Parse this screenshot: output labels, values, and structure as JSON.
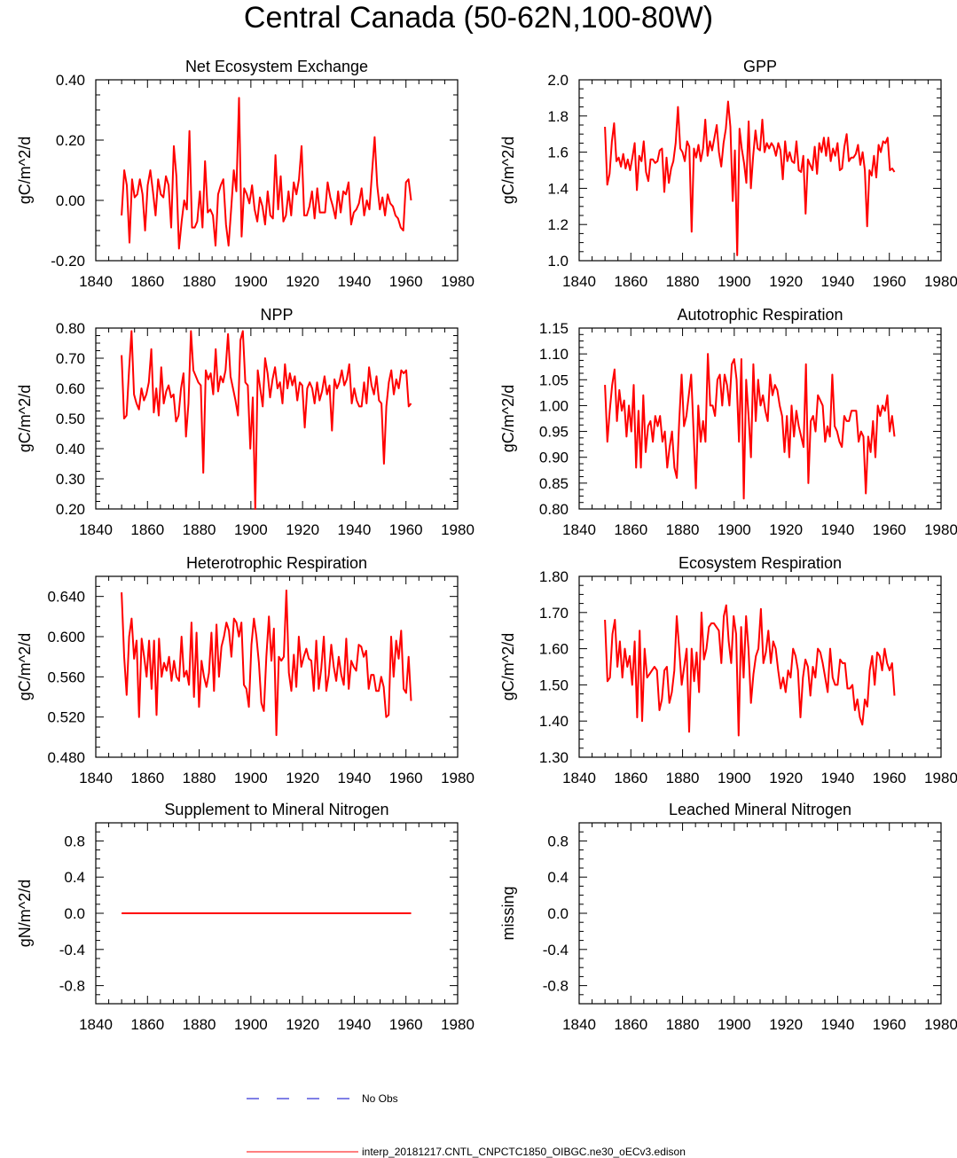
{
  "title": "Central Canada (50-62N,100-80W)",
  "colors": {
    "model": "#ff0000",
    "obs": "#0000cc",
    "axis": "#000000"
  },
  "legend": {
    "obs_label": "No Obs",
    "model_label": "interp_20181217.CNTL_CNPCTC1850_OIBGC.ne30_oECv3.edison"
  },
  "chart_data": [
    {
      "type": "line",
      "title": "Net Ecosystem Exchange",
      "ylabel": "gC/m^2/d",
      "xlim": [
        1840,
        1980
      ],
      "xticks": [
        1840,
        1860,
        1880,
        1900,
        1920,
        1940,
        1960,
        1980
      ],
      "xticklabels": [
        "1840",
        "1860",
        "1880",
        "1900",
        "1920",
        "1940",
        "1960",
        "1980"
      ],
      "ylim": [
        -0.2,
        0.4
      ],
      "yticks": [
        -0.2,
        0.0,
        0.2,
        0.4
      ],
      "yticklabels": [
        "-0.20",
        "0.00",
        "0.20",
        "0.40"
      ],
      "x_start": 1850,
      "values": [
        -0.05,
        0.1,
        0.05,
        -0.14,
        0.07,
        0.01,
        0.02,
        0.07,
        0.02,
        -0.1,
        0.05,
        0.1,
        0.03,
        -0.05,
        0.07,
        0.02,
        0.01,
        0.08,
        0.05,
        -0.09,
        0.18,
        0.08,
        -0.16,
        -0.07,
        0.0,
        -0.03,
        0.23,
        -0.09,
        -0.09,
        -0.07,
        0.03,
        -0.09,
        0.13,
        -0.04,
        -0.03,
        -0.05,
        -0.15,
        0.02,
        0.05,
        0.07,
        -0.08,
        -0.15,
        -0.03,
        0.1,
        0.03,
        0.34,
        -0.12,
        0.04,
        0.02,
        -0.01,
        0.05,
        -0.03,
        -0.07,
        0.01,
        -0.02,
        -0.08,
        0.03,
        -0.05,
        -0.06,
        0.15,
        -0.03,
        0.08,
        -0.07,
        -0.05,
        0.03,
        -0.05,
        0.06,
        0.02,
        0.07,
        0.18,
        -0.05,
        -0.05,
        -0.02,
        0.03,
        -0.06,
        0.04,
        -0.04,
        -0.04,
        -0.04,
        0.06,
        0.01,
        -0.02,
        -0.06,
        0.03,
        -0.04,
        0.03,
        0.02,
        0.06,
        -0.08,
        -0.04,
        -0.03,
        -0.01,
        0.04,
        -0.05,
        0.0,
        -0.03,
        0.09,
        0.21,
        0.05,
        -0.03,
        0.01,
        -0.05,
        0.02,
        -0.01,
        -0.02,
        -0.05,
        -0.06,
        -0.09,
        -0.1,
        0.06,
        0.07,
        0.0
      ]
    },
    {
      "type": "line",
      "title": "GPP",
      "ylabel": "gC/m^2/d",
      "xlim": [
        1840,
        1980
      ],
      "xticks": [
        1840,
        1860,
        1880,
        1900,
        1920,
        1940,
        1960,
        1980
      ],
      "xticklabels": [
        "1840",
        "1860",
        "1880",
        "1900",
        "1920",
        "1940",
        "1960",
        "1980"
      ],
      "ylim": [
        1.0,
        2.0
      ],
      "yticks": [
        1.0,
        1.2,
        1.4,
        1.6,
        1.8,
        2.0
      ],
      "yticklabels": [
        "1.0",
        "1.2",
        "1.4",
        "1.6",
        "1.8",
        "2.0"
      ],
      "x_start": 1850,
      "values": [
        1.74,
        1.42,
        1.48,
        1.66,
        1.76,
        1.55,
        1.57,
        1.52,
        1.59,
        1.51,
        1.56,
        1.5,
        1.57,
        1.65,
        1.39,
        1.58,
        1.55,
        1.66,
        1.49,
        1.44,
        1.56,
        1.56,
        1.54,
        1.55,
        1.61,
        1.62,
        1.38,
        1.57,
        1.43,
        1.51,
        1.55,
        1.65,
        1.85,
        1.62,
        1.6,
        1.55,
        1.66,
        1.63,
        1.16,
        1.62,
        1.57,
        1.64,
        1.55,
        1.62,
        1.78,
        1.58,
        1.66,
        1.61,
        1.68,
        1.75,
        1.6,
        1.52,
        1.65,
        1.73,
        1.88,
        1.74,
        1.33,
        1.61,
        1.03,
        1.73,
        1.62,
        1.54,
        1.43,
        1.77,
        1.4,
        1.58,
        1.72,
        1.62,
        1.61,
        1.78,
        1.6,
        1.65,
        1.62,
        1.65,
        1.63,
        1.58,
        1.65,
        1.61,
        1.45,
        1.66,
        1.55,
        1.6,
        1.55,
        1.54,
        1.66,
        1.5,
        1.49,
        1.58,
        1.26,
        1.56,
        1.53,
        1.5,
        1.63,
        1.48,
        1.65,
        1.6,
        1.68,
        1.58,
        1.68,
        1.55,
        1.62,
        1.58,
        1.65,
        1.5,
        1.51,
        1.63,
        1.7,
        1.55,
        1.57,
        1.57,
        1.59,
        1.64,
        1.53,
        1.6,
        1.5,
        1.19,
        1.5,
        1.47,
        1.58,
        1.46,
        1.64,
        1.6,
        1.66,
        1.65,
        1.68,
        1.5,
        1.51,
        1.49
      ]
    },
    {
      "type": "line",
      "title": "NPP",
      "ylabel": "gC/m^2/d",
      "xlim": [
        1840,
        1980
      ],
      "xticks": [
        1840,
        1860,
        1880,
        1900,
        1920,
        1940,
        1960,
        1980
      ],
      "xticklabels": [
        "1840",
        "1860",
        "1880",
        "1900",
        "1920",
        "1940",
        "1960",
        "1980"
      ],
      "ylim": [
        0.2,
        0.8
      ],
      "yticks": [
        0.2,
        0.3,
        0.4,
        0.5,
        0.6,
        0.7,
        0.8
      ],
      "yticklabels": [
        "0.20",
        "0.30",
        "0.40",
        "0.50",
        "0.60",
        "0.70",
        "0.80"
      ],
      "x_start": 1850,
      "values": [
        0.71,
        0.5,
        0.51,
        0.66,
        0.79,
        0.58,
        0.55,
        0.53,
        0.6,
        0.56,
        0.58,
        0.62,
        0.73,
        0.52,
        0.6,
        0.51,
        0.67,
        0.55,
        0.59,
        0.61,
        0.57,
        0.58,
        0.49,
        0.51,
        0.6,
        0.65,
        0.44,
        0.55,
        0.79,
        0.66,
        0.64,
        0.62,
        0.61,
        0.32,
        0.66,
        0.63,
        0.65,
        0.58,
        0.73,
        0.59,
        0.64,
        0.62,
        0.66,
        0.78,
        0.64,
        0.6,
        0.56,
        0.51,
        0.76,
        0.79,
        0.62,
        0.61,
        0.4,
        0.57,
        0.2,
        0.66,
        0.6,
        0.54,
        0.7,
        0.65,
        0.57,
        0.63,
        0.67,
        0.6,
        0.62,
        0.55,
        0.68,
        0.6,
        0.65,
        0.61,
        0.64,
        0.56,
        0.62,
        0.61,
        0.47,
        0.6,
        0.62,
        0.6,
        0.55,
        0.62,
        0.56,
        0.59,
        0.64,
        0.58,
        0.61,
        0.46,
        0.63,
        0.6,
        0.62,
        0.66,
        0.61,
        0.63,
        0.68,
        0.55,
        0.6,
        0.56,
        0.54,
        0.54,
        0.62,
        0.55,
        0.67,
        0.61,
        0.58,
        0.64,
        0.56,
        0.55,
        0.35,
        0.54,
        0.62,
        0.66,
        0.58,
        0.63,
        0.6,
        0.66,
        0.65,
        0.66,
        0.54,
        0.55
      ]
    },
    {
      "type": "line",
      "title": "Autotrophic Respiration",
      "ylabel": "gC/m^2/d",
      "xlim": [
        1840,
        1980
      ],
      "xticks": [
        1840,
        1860,
        1880,
        1900,
        1920,
        1940,
        1960,
        1980
      ],
      "xticklabels": [
        "1840",
        "1860",
        "1880",
        "1900",
        "1920",
        "1940",
        "1960",
        "1980"
      ],
      "ylim": [
        0.8,
        1.15
      ],
      "yticks": [
        0.8,
        0.85,
        0.9,
        0.95,
        1.0,
        1.05,
        1.1,
        1.15
      ],
      "yticklabels": [
        "0.80",
        "0.85",
        "0.90",
        "0.95",
        "1.00",
        "1.05",
        "1.10",
        "1.15"
      ],
      "x_start": 1850,
      "values": [
        1.04,
        0.93,
        0.99,
        1.04,
        1.07,
        0.97,
        1.03,
        0.99,
        1.01,
        0.94,
        1.0,
        0.95,
        1.04,
        0.88,
        0.99,
        0.88,
        1.02,
        0.91,
        0.96,
        0.97,
        0.93,
        0.98,
        0.96,
        0.98,
        0.93,
        0.95,
        0.88,
        0.92,
        0.95,
        0.88,
        0.86,
        0.97,
        1.06,
        0.96,
        0.98,
        1.02,
        1.06,
        0.95,
        0.84,
        1.0,
        0.93,
        0.97,
        0.93,
        1.1,
        1.0,
        1.0,
        0.98,
        1.05,
        1.06,
        1.0,
        1.06,
        1.04,
        1.0,
        1.08,
        1.09,
        1.05,
        0.93,
        1.09,
        0.82,
        1.05,
        0.98,
        0.9,
        1.08,
        0.97,
        1.05,
        1.0,
        1.02,
        0.99,
        0.97,
        1.06,
        1.02,
        1.04,
        1.03,
        1.0,
        0.98,
        0.91,
        0.98,
        0.9,
        1.0,
        0.94,
        0.99,
        0.96,
        0.94,
        0.92,
        1.08,
        0.85,
        0.97,
        0.98,
        0.95,
        1.02,
        1.01,
        1.0,
        0.93,
        0.96,
        0.94,
        1.06,
        0.96,
        0.95,
        0.93,
        0.92,
        0.98,
        0.97,
        0.97,
        0.99,
        0.99,
        0.99,
        0.93,
        0.95,
        0.94,
        0.83,
        0.94,
        0.91,
        0.97,
        0.9,
        1.0,
        0.98,
        1.0,
        0.99,
        1.02,
        0.95,
        0.98,
        0.94
      ]
    },
    {
      "type": "line",
      "title": "Heterotrophic Respiration",
      "ylabel": "gC/m^2/d",
      "xlim": [
        1840,
        1980
      ],
      "xticks": [
        1840,
        1860,
        1880,
        1900,
        1920,
        1940,
        1960,
        1980
      ],
      "xticklabels": [
        "1840",
        "1860",
        "1880",
        "1900",
        "1920",
        "1940",
        "1960",
        "1980"
      ],
      "ylim": [
        0.48,
        0.66
      ],
      "yticks": [
        0.48,
        0.52,
        0.56,
        0.6,
        0.64
      ],
      "yticklabels": [
        "0.480",
        "0.520",
        "0.560",
        "0.600",
        "0.640"
      ],
      "x_start": 1850,
      "values": [
        0.644,
        0.58,
        0.542,
        0.6,
        0.618,
        0.578,
        0.596,
        0.52,
        0.598,
        0.58,
        0.56,
        0.596,
        0.548,
        0.596,
        0.522,
        0.598,
        0.56,
        0.574,
        0.566,
        0.58,
        0.556,
        0.576,
        0.56,
        0.556,
        0.6,
        0.56,
        0.566,
        0.552,
        0.614,
        0.54,
        0.604,
        0.53,
        0.576,
        0.56,
        0.55,
        0.564,
        0.604,
        0.546,
        0.612,
        0.56,
        0.59,
        0.6,
        0.614,
        0.606,
        0.58,
        0.618,
        0.614,
        0.6,
        0.614,
        0.552,
        0.548,
        0.53,
        0.592,
        0.618,
        0.6,
        0.574,
        0.534,
        0.526,
        0.58,
        0.62,
        0.576,
        0.608,
        0.502,
        0.58,
        0.576,
        0.58,
        0.646,
        0.564,
        0.546,
        0.582,
        0.55,
        0.6,
        0.57,
        0.58,
        0.588,
        0.578,
        0.576,
        0.546,
        0.596,
        0.548,
        0.568,
        0.6,
        0.546,
        0.562,
        0.592,
        0.57,
        0.556,
        0.58,
        0.562,
        0.552,
        0.598,
        0.548,
        0.576,
        0.57,
        0.566,
        0.592,
        0.59,
        0.58,
        0.586,
        0.548,
        0.562,
        0.562,
        0.546,
        0.546,
        0.56,
        0.55,
        0.52,
        0.522,
        0.6,
        0.56,
        0.596,
        0.578,
        0.606,
        0.548,
        0.544,
        0.58,
        0.536
      ]
    },
    {
      "type": "line",
      "title": "Ecosystem Respiration",
      "ylabel": "gC/m^2/d",
      "xlim": [
        1840,
        1980
      ],
      "xticks": [
        1840,
        1860,
        1880,
        1900,
        1920,
        1940,
        1960,
        1980
      ],
      "xticklabels": [
        "1840",
        "1860",
        "1880",
        "1900",
        "1920",
        "1940",
        "1960",
        "1980"
      ],
      "ylim": [
        1.3,
        1.8
      ],
      "yticks": [
        1.3,
        1.4,
        1.5,
        1.6,
        1.7,
        1.8
      ],
      "yticklabels": [
        "1.30",
        "1.40",
        "1.50",
        "1.60",
        "1.70",
        "1.80"
      ],
      "x_start": 1850,
      "values": [
        1.68,
        1.51,
        1.52,
        1.64,
        1.68,
        1.55,
        1.62,
        1.52,
        1.6,
        1.55,
        1.58,
        1.5,
        1.62,
        1.41,
        1.65,
        1.4,
        1.6,
        1.52,
        1.53,
        1.54,
        1.55,
        1.54,
        1.43,
        1.46,
        1.54,
        1.55,
        1.45,
        1.48,
        1.54,
        1.69,
        1.6,
        1.5,
        1.55,
        1.6,
        1.37,
        1.6,
        1.51,
        1.59,
        1.48,
        1.7,
        1.57,
        1.6,
        1.66,
        1.67,
        1.67,
        1.66,
        1.65,
        1.56,
        1.69,
        1.72,
        1.62,
        1.56,
        1.69,
        1.64,
        1.36,
        1.66,
        1.52,
        1.69,
        1.6,
        1.45,
        1.53,
        1.58,
        1.6,
        1.71,
        1.56,
        1.59,
        1.65,
        1.56,
        1.62,
        1.6,
        1.54,
        1.49,
        1.52,
        1.48,
        1.54,
        1.52,
        1.6,
        1.58,
        1.54,
        1.41,
        1.52,
        1.57,
        1.55,
        1.47,
        1.55,
        1.52,
        1.6,
        1.59,
        1.56,
        1.52,
        1.48,
        1.6,
        1.52,
        1.5,
        1.5,
        1.57,
        1.56,
        1.56,
        1.49,
        1.49,
        1.5,
        1.43,
        1.46,
        1.41,
        1.39,
        1.46,
        1.44,
        1.54,
        1.58,
        1.5,
        1.59,
        1.58,
        1.54,
        1.6,
        1.56,
        1.54,
        1.56,
        1.47
      ]
    },
    {
      "type": "line",
      "title": "Supplement to Mineral Nitrogen",
      "ylabel": "gN/m^2/d",
      "xlim": [
        1840,
        1980
      ],
      "xticks": [
        1840,
        1860,
        1880,
        1900,
        1920,
        1940,
        1960,
        1980
      ],
      "xticklabels": [
        "1840",
        "1860",
        "1880",
        "1900",
        "1920",
        "1940",
        "1960",
        "1980"
      ],
      "ylim": [
        -1.0,
        1.0
      ],
      "yticks": [
        -0.8,
        -0.4,
        0.0,
        0.4,
        0.8
      ],
      "yticklabels": [
        "-0.8",
        "-0.4",
        "0.0",
        "0.4",
        "0.8"
      ],
      "x_start": 1850,
      "x_end": 1962,
      "constant": 0.0,
      "values": []
    },
    {
      "type": "line",
      "title": "Leached Mineral Nitrogen",
      "ylabel": "missing",
      "xlim": [
        1840,
        1980
      ],
      "xticks": [
        1840,
        1860,
        1880,
        1900,
        1920,
        1940,
        1960,
        1980
      ],
      "xticklabels": [
        "1840",
        "1860",
        "1880",
        "1900",
        "1920",
        "1940",
        "1960",
        "1980"
      ],
      "ylim": [
        -1.0,
        1.0
      ],
      "yticks": [
        -0.8,
        -0.4,
        0.0,
        0.4,
        0.8
      ],
      "yticklabels": [
        "-0.8",
        "-0.4",
        "0.0",
        "0.4",
        "0.8"
      ],
      "x_start": 1850,
      "values": []
    }
  ]
}
